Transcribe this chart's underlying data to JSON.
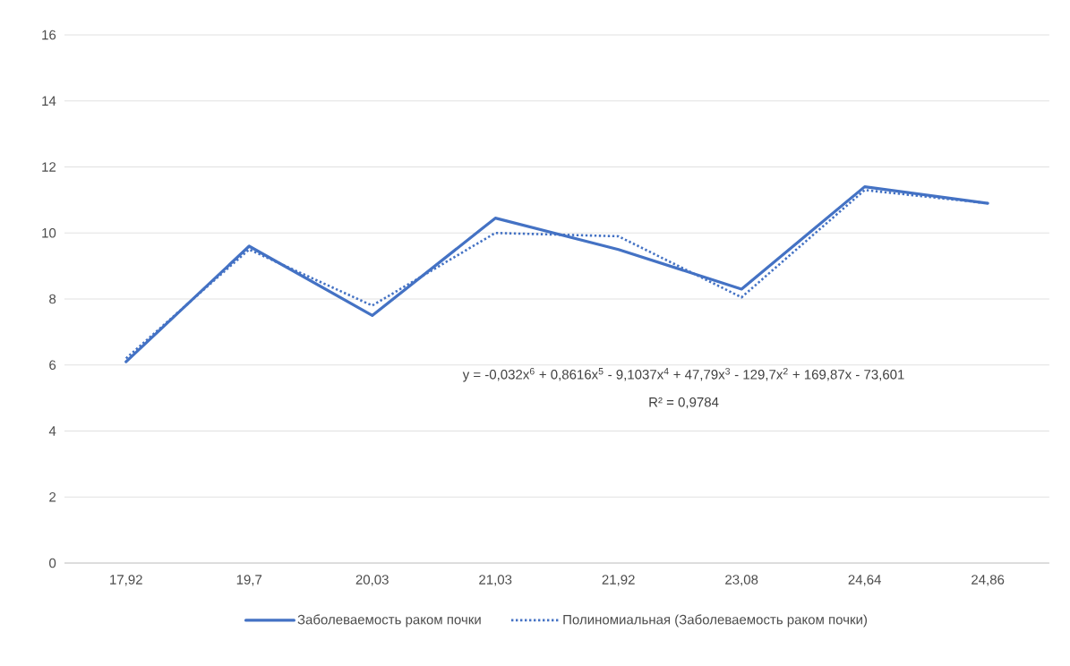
{
  "chart_data": {
    "type": "line",
    "categories": [
      "17,92",
      "19,7",
      "20,03",
      "21,03",
      "21,92",
      "23,08",
      "24,64",
      "24,86"
    ],
    "series": [
      {
        "name": "Заболеваемость раком почки",
        "color": "#4472c4",
        "line_style": "solid",
        "values": [
          6.1,
          9.6,
          7.5,
          10.45,
          9.5,
          8.3,
          11.4,
          10.9
        ]
      },
      {
        "name": "Полиномиальная (Заболеваемость раком почки)",
        "color": "#4472c4",
        "line_style": "dotted",
        "values": [
          6.2,
          9.5,
          7.8,
          10.0,
          9.9,
          8.05,
          11.3,
          10.9
        ]
      }
    ],
    "ylim": [
      0,
      16
    ],
    "yticks": [
      0,
      2,
      4,
      6,
      8,
      10,
      12,
      14,
      16
    ],
    "grid": "y",
    "legend": "bottom",
    "marker": "none",
    "annotations": [
      "y = -0,032x$^{6}$ + 0,8616x$^{5}$ - 9,1037x$^{4}$ + 47,79x$^{3}$ - 129,7x$^{2}$ + 169,87x - 73,601",
      "R² = 0,9784"
    ]
  }
}
